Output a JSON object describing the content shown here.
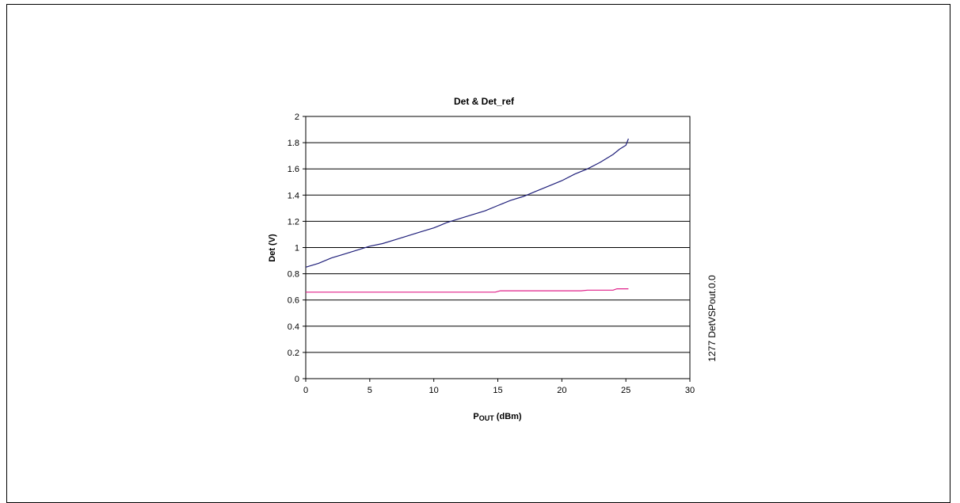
{
  "chart_data": {
    "type": "line",
    "title": "Det & Det_ref",
    "xlabel_main": "P",
    "xlabel_sub": "OUT",
    "xlabel_unit": " (dBm)",
    "ylabel": "Det (V)",
    "side_label": "1277 DetVSPout.0.0",
    "xlim": [
      0,
      30
    ],
    "ylim": [
      0,
      2
    ],
    "x_ticks": [
      0,
      5,
      10,
      15,
      20,
      25,
      30
    ],
    "y_ticks": [
      0,
      0.2,
      0.4,
      0.6,
      0.8,
      1,
      1.2,
      1.4,
      1.6,
      1.8,
      2
    ],
    "x_tick_labels": [
      "0",
      "5",
      "10",
      "15",
      "20",
      "25",
      "30"
    ],
    "y_tick_labels": [
      "0",
      "0.2",
      "0.4",
      "0.6",
      "0.8",
      "1",
      "1.2",
      "1.4",
      "1.6",
      "1.8",
      "2"
    ],
    "grid": "horizontal",
    "series": [
      {
        "color": "#1f1f7a",
        "x": [
          0,
          1,
          2,
          3,
          4,
          5,
          6,
          7,
          8,
          9,
          10,
          10.5,
          11,
          12,
          13,
          14,
          15,
          16,
          17,
          18,
          19,
          20,
          21,
          22,
          23,
          24,
          24.5,
          25,
          25.2
        ],
        "y": [
          0.85,
          0.88,
          0.92,
          0.95,
          0.98,
          1.01,
          1.03,
          1.06,
          1.09,
          1.12,
          1.15,
          1.17,
          1.19,
          1.22,
          1.25,
          1.28,
          1.32,
          1.36,
          1.39,
          1.43,
          1.47,
          1.51,
          1.56,
          1.6,
          1.65,
          1.71,
          1.75,
          1.78,
          1.83
        ]
      },
      {
        "color": "#e0208a",
        "x": [
          0,
          5,
          10,
          14.8,
          15.2,
          20,
          21.5,
          22,
          24,
          24.3,
          25.2
        ],
        "y": [
          0.66,
          0.66,
          0.66,
          0.66,
          0.67,
          0.67,
          0.67,
          0.675,
          0.675,
          0.685,
          0.685
        ]
      }
    ]
  }
}
